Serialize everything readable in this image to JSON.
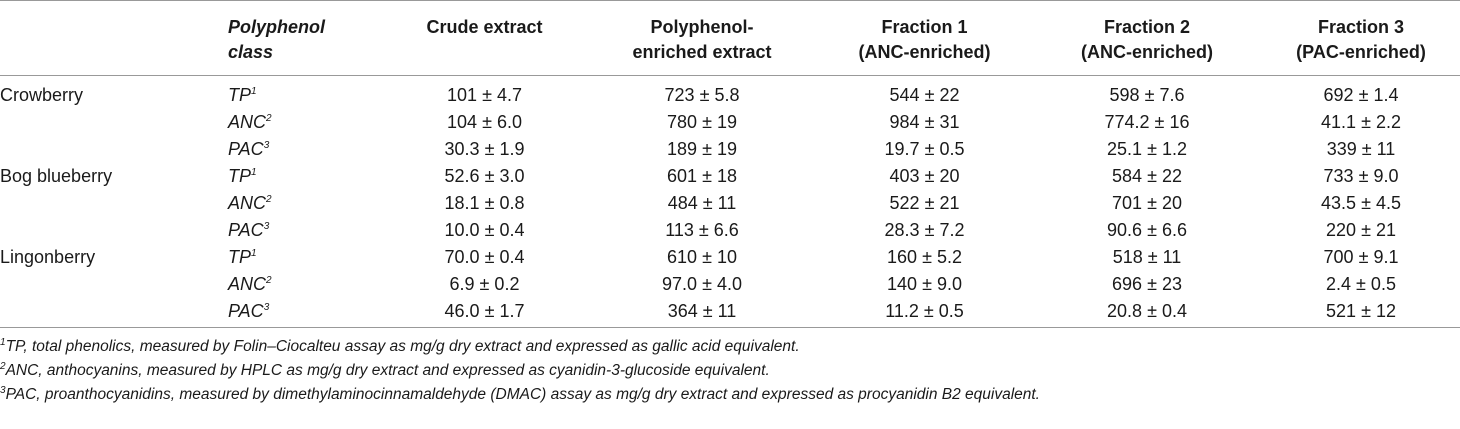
{
  "headers": {
    "blank": "",
    "polyphenol_class": "Polyphenol class",
    "crude": "Crude extract",
    "enriched": "Polyphenol-enriched extract",
    "f1": "Fraction 1 (ANC-enriched)",
    "f2": "Fraction 2 (ANC-enriched)",
    "f3": "Fraction 3 (PAC-enriched)"
  },
  "rows": [
    {
      "berry": "Crowberry",
      "cls": "TP",
      "sup": "1",
      "crude": "101 ± 4.7",
      "enriched": "723 ± 5.8",
      "f1": "544 ± 22",
      "f2": "598 ± 7.6",
      "f3": "692 ± 1.4"
    },
    {
      "berry": "",
      "cls": "ANC",
      "sup": "2",
      "crude": "104 ± 6.0",
      "enriched": "780 ± 19",
      "f1": "984 ± 31",
      "f2": "774.2 ± 16",
      "f3": "41.1 ± 2.2"
    },
    {
      "berry": "",
      "cls": "PAC",
      "sup": "3",
      "crude": "30.3 ± 1.9",
      "enriched": "189 ± 19",
      "f1": "19.7 ± 0.5",
      "f2": "25.1 ± 1.2",
      "f3": "339 ± 11"
    },
    {
      "berry": "Bog blueberry",
      "cls": "TP",
      "sup": "1",
      "crude": "52.6 ± 3.0",
      "enriched": "601 ± 18",
      "f1": "403 ± 20",
      "f2": "584 ± 22",
      "f3": "733 ± 9.0"
    },
    {
      "berry": "",
      "cls": "ANC",
      "sup": "2",
      "crude": "18.1 ± 0.8",
      "enriched": "484 ± 11",
      "f1": "522 ± 21",
      "f2": "701 ± 20",
      "f3": "43.5 ± 4.5"
    },
    {
      "berry": "",
      "cls": "PAC",
      "sup": "3",
      "crude": "10.0 ± 0.4",
      "enriched": "113 ± 6.6",
      "f1": "28.3 ± 7.2",
      "f2": "90.6 ± 6.6",
      "f3": "220 ± 21"
    },
    {
      "berry": "Lingonberry",
      "cls": "TP",
      "sup": "1",
      "crude": "70.0 ± 0.4",
      "enriched": "610 ± 10",
      "f1": "160 ± 5.2",
      "f2": "518 ± 11",
      "f3": "700 ± 9.1"
    },
    {
      "berry": "",
      "cls": "ANC",
      "sup": "2",
      "crude": "6.9 ± 0.2",
      "enriched": "97.0 ± 4.0",
      "f1": "140 ± 9.0",
      "f2": "696 ± 23",
      "f3": "2.4 ± 0.5"
    },
    {
      "berry": "",
      "cls": "PAC",
      "sup": "3",
      "crude": "46.0 ± 1.7",
      "enriched": "364 ± 11",
      "f1": "11.2 ± 0.5",
      "f2": "20.8 ± 0.4",
      "f3": "521 ± 12"
    }
  ],
  "footnotes": [
    {
      "mark": "1",
      "text": "TP, total phenolics, measured by Folin–Ciocalteu assay as mg/g dry extract and expressed as gallic acid equivalent."
    },
    {
      "mark": "2",
      "text": "ANC, anthocyanins, measured by HPLC as mg/g dry extract and expressed as cyanidin-3-glucoside equivalent."
    },
    {
      "mark": "3",
      "text": "PAC, proanthocyanidins, measured by dimethylaminocinnamaldehyde (DMAC) assay as mg/g dry extract and expressed as procyanidin B2 equivalent."
    }
  ]
}
